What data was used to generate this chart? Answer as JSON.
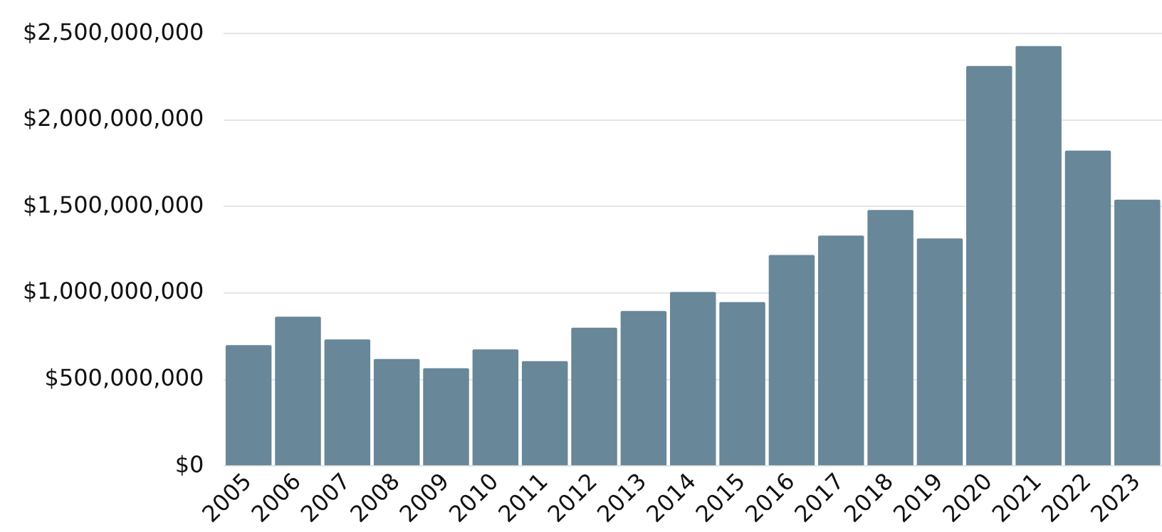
{
  "chart_data": {
    "type": "bar",
    "categories": [
      "2005",
      "2006",
      "2007",
      "2008",
      "2009",
      "2010",
      "2011",
      "2012",
      "2013",
      "2014",
      "2015",
      "2016",
      "2017",
      "2018",
      "2019",
      "2020",
      "2021",
      "2022",
      "2023"
    ],
    "values": [
      699000000,
      863000000,
      732000000,
      619000000,
      565000000,
      674000000,
      606000000,
      800000000,
      896000000,
      1006000000,
      948000000,
      1220000000,
      1332000000,
      1480000000,
      1316000000,
      2313000000,
      2428000000,
      1823000000,
      1540000000
    ],
    "color": "#688799",
    "ylim": [
      0,
      2500000000
    ],
    "yticks": [
      {
        "value": 0,
        "label": "$0"
      },
      {
        "value": 500000000,
        "label": "$500,000,000"
      },
      {
        "value": 1000000000,
        "label": "$1,000,000,000"
      },
      {
        "value": 1500000000,
        "label": "$1,500,000,000"
      },
      {
        "value": 2000000000,
        "label": "$2,000,000,000"
      },
      {
        "value": 2500000000,
        "label": "$2,500,000,000"
      }
    ],
    "grid": "y",
    "legend": false
  }
}
